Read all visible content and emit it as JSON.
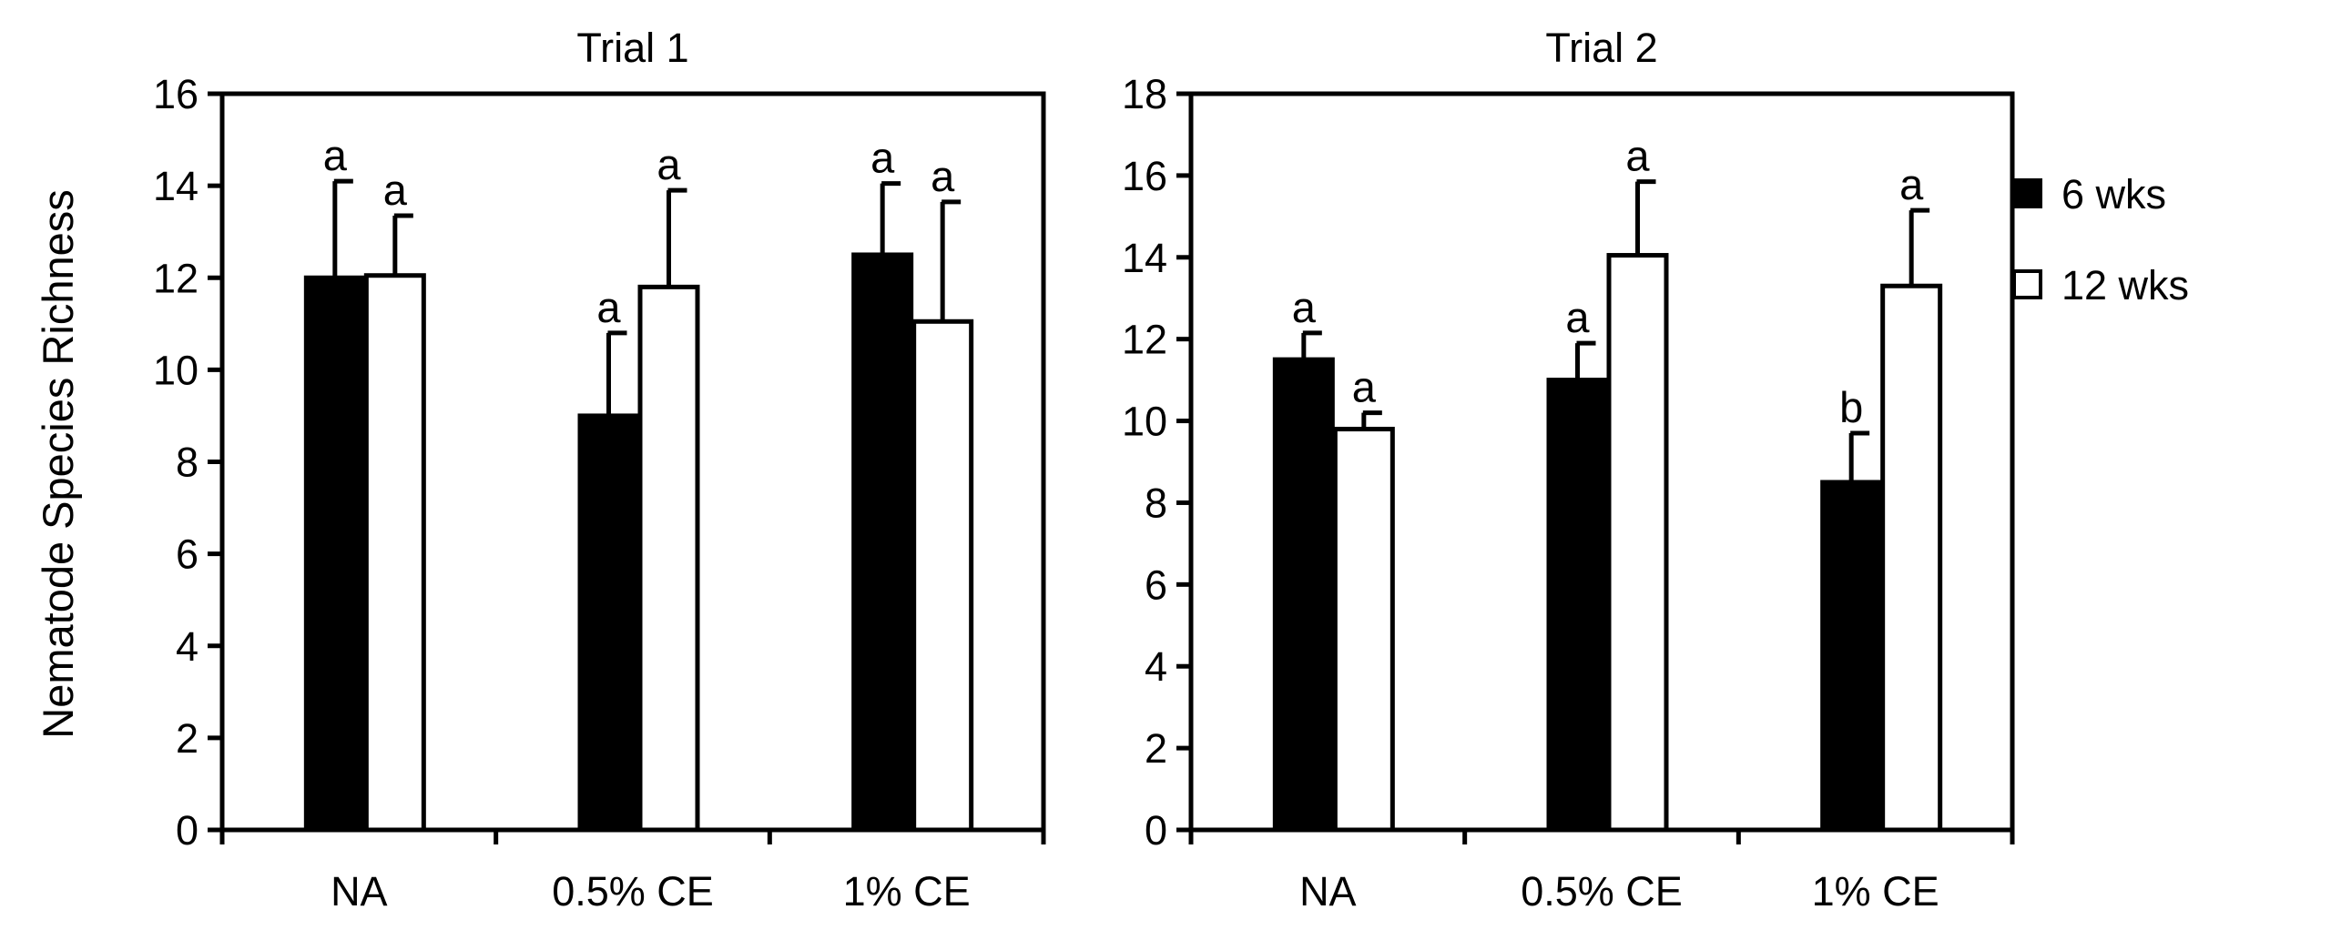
{
  "chart_data": {
    "type": "bar",
    "ylabel": "Nematode Species Richness",
    "legend": {
      "placement": "right",
      "entries": [
        {
          "name": "6 wks",
          "color": "#000000"
        },
        {
          "name": "12 wks",
          "color": "#ffffff"
        }
      ]
    },
    "panels": [
      {
        "title": "Trial 1",
        "categories": [
          "NA",
          "0.5% CE",
          "1% CE"
        ],
        "ylim": [
          0,
          16
        ],
        "yticks": [
          "0",
          "2",
          "4",
          "6",
          "8",
          "10",
          "12",
          "14",
          "16"
        ],
        "series": [
          {
            "name": "6 wks",
            "values": [
              12.0,
              9.0,
              12.5
            ],
            "errors": [
              2.1,
              1.8,
              1.55
            ],
            "letters": [
              "a",
              "a",
              "a"
            ]
          },
          {
            "name": "12 wks",
            "values": [
              12.05,
              11.8,
              11.05
            ],
            "errors": [
              1.3,
              2.1,
              2.6
            ],
            "letters": [
              "a",
              "a",
              "a"
            ]
          }
        ]
      },
      {
        "title": "Trial 2",
        "categories": [
          "NA",
          "0.5% CE",
          "1% CE"
        ],
        "ylim": [
          0,
          18
        ],
        "yticks": [
          "0",
          "2",
          "4",
          "6",
          "8",
          "10",
          "12",
          "14",
          "16",
          "18"
        ],
        "series": [
          {
            "name": "6 wks",
            "values": [
              11.5,
              11.0,
              8.5
            ],
            "errors": [
              0.65,
              0.9,
              1.2
            ],
            "letters": [
              "a",
              "a",
              "b"
            ]
          },
          {
            "name": "12 wks",
            "values": [
              9.8,
              14.05,
              13.3
            ],
            "errors": [
              0.4,
              1.8,
              1.85
            ],
            "letters": [
              "a",
              "a",
              "a"
            ]
          }
        ]
      }
    ]
  }
}
